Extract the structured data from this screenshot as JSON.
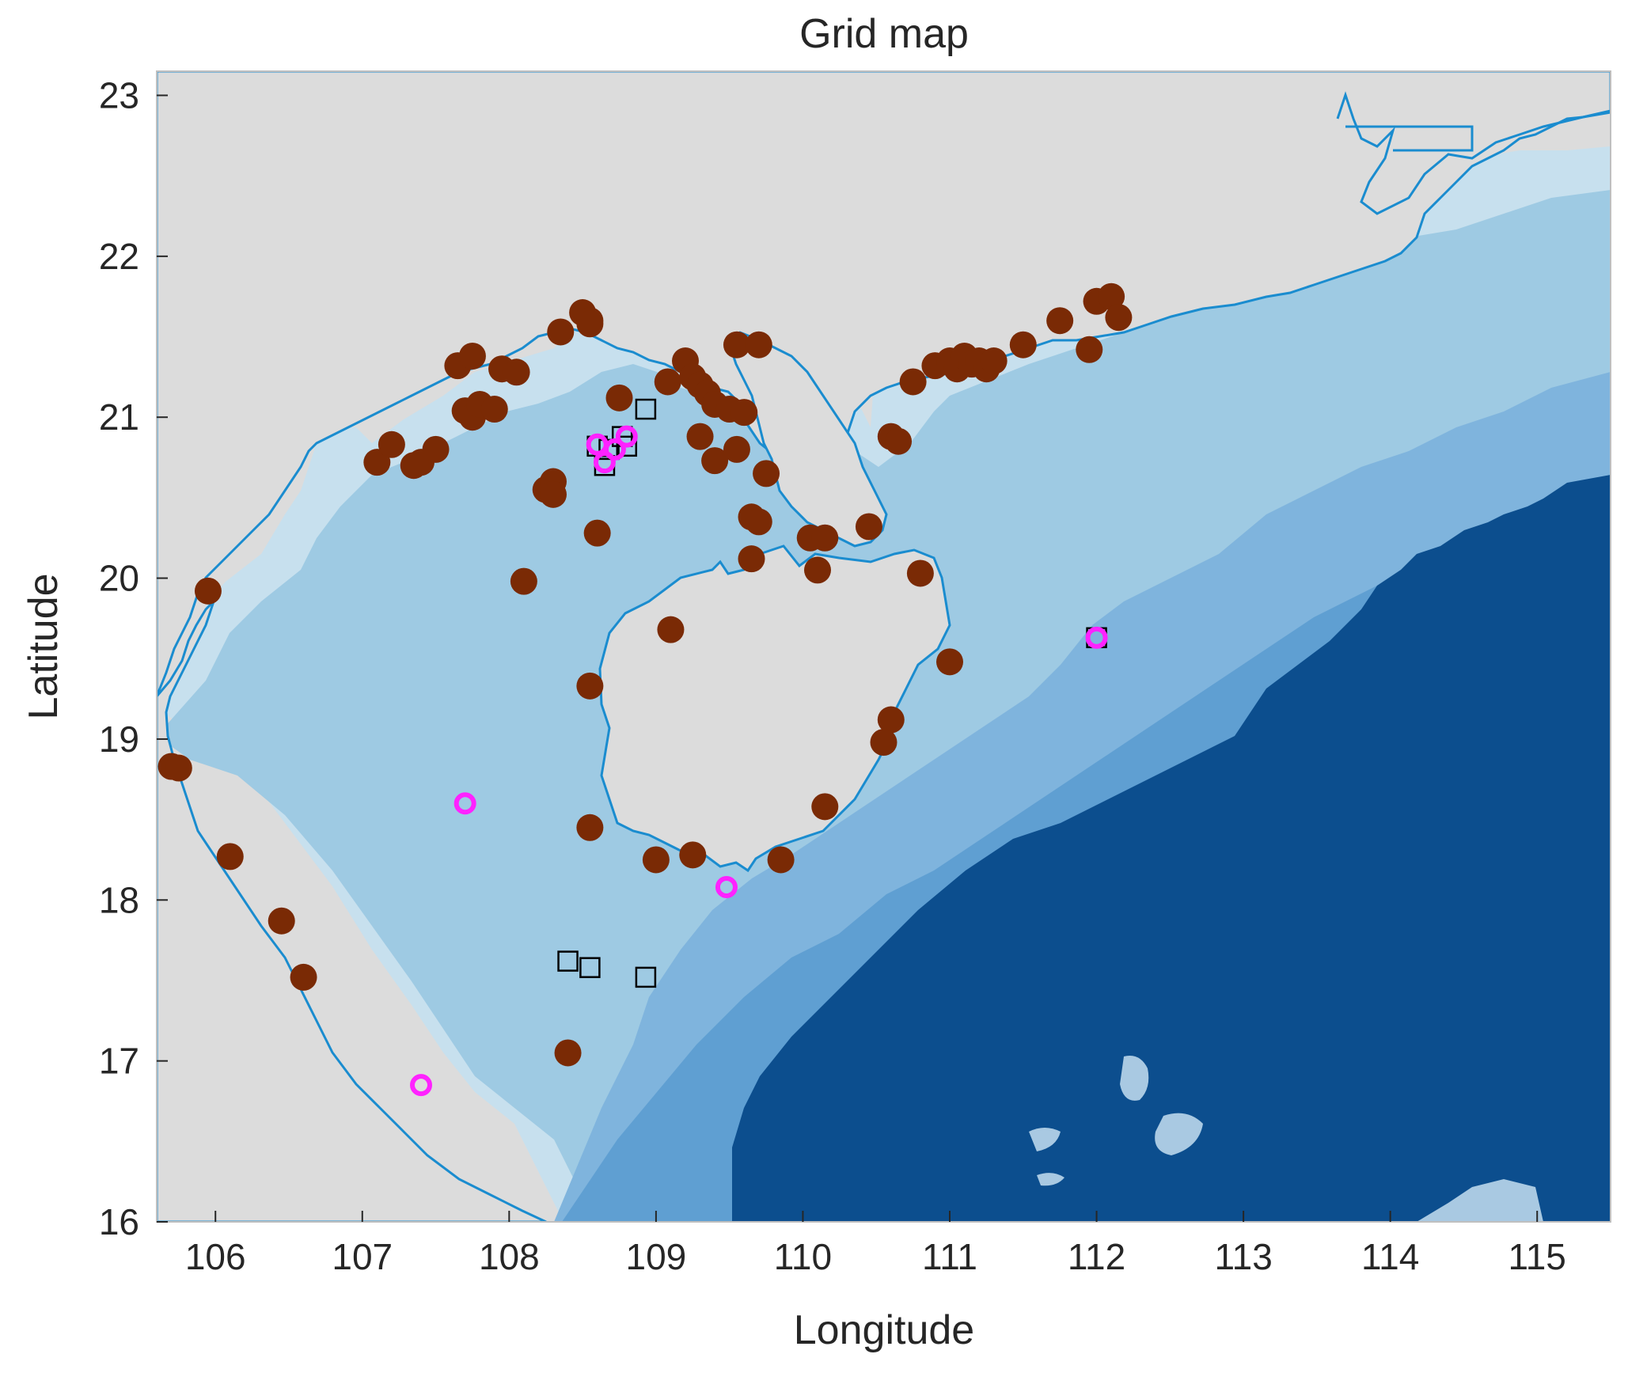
{
  "figure": {
    "title": "Grid map",
    "xlabel": "Longitude",
    "ylabel": "Latitude"
  },
  "chart_data": {
    "type": "scatter",
    "title": "Grid map",
    "xlabel": "Longitude",
    "ylabel": "Latitude",
    "xlim": [
      105.6,
      115.5
    ],
    "ylim": [
      16,
      23.15
    ],
    "xticks": [
      106,
      107,
      108,
      109,
      110,
      111,
      112,
      113,
      114,
      115
    ],
    "yticks": [
      16,
      17,
      18,
      19,
      20,
      21,
      22,
      23
    ],
    "grid": false,
    "legend": "none",
    "colors": {
      "land": "#dcdcdc",
      "coastline": "#1a8ccf",
      "shelf_shallow": "#c7e0ee",
      "shelf_mid": "#9ecae3",
      "slope": "#7fb4dd",
      "slope_deep": "#5f9fd2",
      "deep_water": "#0c4e8e",
      "deep_water_2": "#084a8a",
      "dot_fill": "#7a2a05",
      "square_stroke": "#000000",
      "highlight_magenta": "#ff22ff"
    },
    "series": [
      {
        "marker": "filled-circle",
        "color": "#7a2a05",
        "points": [
          [
            105.7,
            18.83
          ],
          [
            105.75,
            18.82
          ],
          [
            105.95,
            19.92
          ],
          [
            106.1,
            18.27
          ],
          [
            106.45,
            17.87
          ],
          [
            106.6,
            17.52
          ],
          [
            107.1,
            20.72
          ],
          [
            107.2,
            20.83
          ],
          [
            107.35,
            20.7
          ],
          [
            107.4,
            20.72
          ],
          [
            107.5,
            20.8
          ],
          [
            107.65,
            21.32
          ],
          [
            107.75,
            21.38
          ],
          [
            107.7,
            21.04
          ],
          [
            107.75,
            21.0
          ],
          [
            107.8,
            21.08
          ],
          [
            107.9,
            21.05
          ],
          [
            107.95,
            21.3
          ],
          [
            108.05,
            21.28
          ],
          [
            108.1,
            19.98
          ],
          [
            108.25,
            20.55
          ],
          [
            108.3,
            20.6
          ],
          [
            108.3,
            20.52
          ],
          [
            108.35,
            21.53
          ],
          [
            108.5,
            21.65
          ],
          [
            108.55,
            21.6
          ],
          [
            108.55,
            21.58
          ],
          [
            108.6,
            20.28
          ],
          [
            108.55,
            19.33
          ],
          [
            108.55,
            18.45
          ],
          [
            108.4,
            17.05
          ],
          [
            108.75,
            21.12
          ],
          [
            109.08,
            21.22
          ],
          [
            109.2,
            21.35
          ],
          [
            109.25,
            21.25
          ],
          [
            109.3,
            21.2
          ],
          [
            109.35,
            21.15
          ],
          [
            109.4,
            21.08
          ],
          [
            109.5,
            21.05
          ],
          [
            109.55,
            21.45
          ],
          [
            109.7,
            21.45
          ],
          [
            109.6,
            21.03
          ],
          [
            109.3,
            20.88
          ],
          [
            109.4,
            20.73
          ],
          [
            109.55,
            20.8
          ],
          [
            109.65,
            20.38
          ],
          [
            109.7,
            20.35
          ],
          [
            109.75,
            20.65
          ],
          [
            109.65,
            20.12
          ],
          [
            110.05,
            20.25
          ],
          [
            110.15,
            20.25
          ],
          [
            110.1,
            20.05
          ],
          [
            110.45,
            20.32
          ],
          [
            110.6,
            20.88
          ],
          [
            110.65,
            20.85
          ],
          [
            110.75,
            21.22
          ],
          [
            110.8,
            20.03
          ],
          [
            110.9,
            21.32
          ],
          [
            111.0,
            21.35
          ],
          [
            111.05,
            21.3
          ],
          [
            111.1,
            21.38
          ],
          [
            111.15,
            21.33
          ],
          [
            111.2,
            21.35
          ],
          [
            111.25,
            21.3
          ],
          [
            111.3,
            21.35
          ],
          [
            111.5,
            21.45
          ],
          [
            111.75,
            21.6
          ],
          [
            111.95,
            21.42
          ],
          [
            112.0,
            21.72
          ],
          [
            112.1,
            21.75
          ],
          [
            112.15,
            21.62
          ],
          [
            109.1,
            19.68
          ],
          [
            111.0,
            19.48
          ],
          [
            110.6,
            19.12
          ],
          [
            110.55,
            18.98
          ],
          [
            110.15,
            18.58
          ],
          [
            109.0,
            18.25
          ],
          [
            109.25,
            18.28
          ],
          [
            109.85,
            18.25
          ]
        ]
      },
      {
        "marker": "open-square",
        "color": "#000000",
        "points": [
          [
            108.93,
            21.05
          ],
          [
            108.77,
            20.88
          ],
          [
            108.8,
            20.82
          ],
          [
            108.68,
            20.8
          ],
          [
            108.6,
            20.82
          ],
          [
            108.65,
            20.7
          ],
          [
            108.4,
            17.62
          ],
          [
            108.55,
            17.58
          ],
          [
            108.93,
            17.52
          ],
          [
            112.0,
            19.63
          ]
        ]
      },
      {
        "marker": "magenta-highlight",
        "color": "#ff22ff",
        "points": [
          [
            108.6,
            20.83
          ],
          [
            108.65,
            20.72
          ],
          [
            108.72,
            20.8
          ],
          [
            108.8,
            20.88
          ],
          [
            107.7,
            18.6
          ],
          [
            109.48,
            18.08
          ],
          [
            107.4,
            16.85
          ],
          [
            112.0,
            19.63
          ]
        ]
      }
    ]
  }
}
